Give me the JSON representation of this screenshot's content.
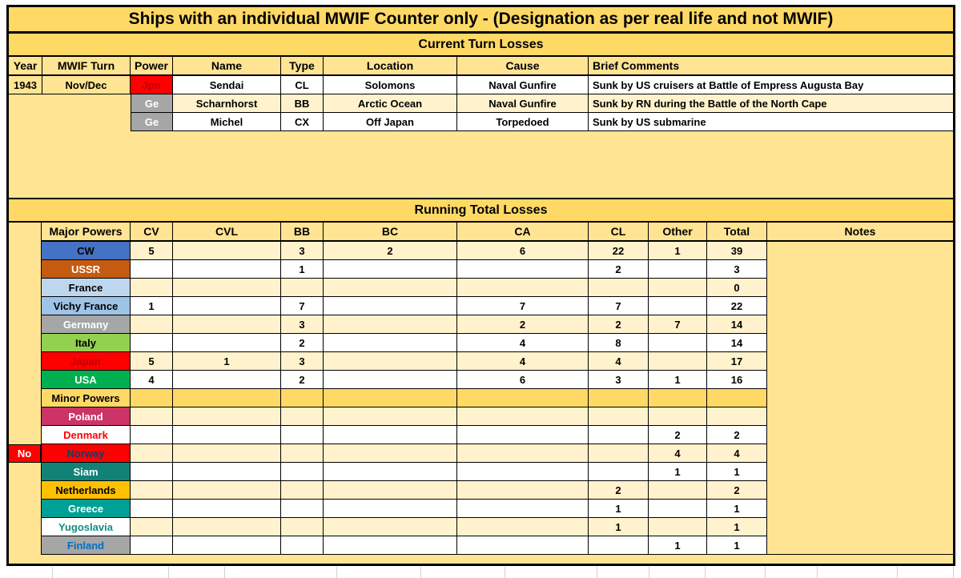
{
  "title": "Ships with an individual MWIF Counter only - (Designation as per real life and not MWIF)",
  "current_turn": {
    "header": "Current Turn Losses",
    "columns": [
      "Year",
      "MWIF Turn",
      "Power",
      "Name",
      "Type",
      "Location",
      "Cause",
      "Brief Comments"
    ],
    "rows": [
      {
        "year": "1943",
        "mwif_turn": "Nov/Dec",
        "power": "Jpn",
        "power_bg": "#FF0000",
        "power_text": "#C00000",
        "name": "Sendai",
        "type": "CL",
        "location": "Solomons",
        "cause": "Naval Gunfire",
        "comments": "Sunk by US cruisers at Battle of Empress Augusta Bay"
      },
      {
        "year": "",
        "mwif_turn": "",
        "power": "Ge",
        "power_bg": "#A6A6A6",
        "power_text": "#FFFFFF",
        "name": "Scharnhorst",
        "type": "BB",
        "location": "Arctic Ocean",
        "cause": "Naval Gunfire",
        "comments": "Sunk by RN during the Battle of the North Cape"
      },
      {
        "year": "",
        "mwif_turn": "",
        "power": "Ge",
        "power_bg": "#A6A6A6",
        "power_text": "#FFFFFF",
        "name": "Michel",
        "type": "CX",
        "location": "Off Japan",
        "cause": "Torpedoed",
        "comments": "Sunk by US submarine"
      }
    ]
  },
  "running_total": {
    "header": "Running Total Losses",
    "columns": [
      "Major Powers",
      "CV",
      "CVL",
      "BB",
      "BC",
      "CA",
      "CL",
      "Other",
      "Total",
      "Notes"
    ],
    "rows": [
      {
        "label": "CW",
        "label_bg": "#4472C4",
        "label_text": "#000000",
        "values": [
          "5",
          "",
          "3",
          "2",
          "6",
          "22",
          "1",
          "39"
        ]
      },
      {
        "label": "USSR",
        "label_bg": "#C55A11",
        "label_text": "#FFFFFF",
        "values": [
          "",
          "",
          "1",
          "",
          "",
          "2",
          "",
          "3"
        ]
      },
      {
        "label": "France",
        "label_bg": "#BDD7EE",
        "label_text": "#000000",
        "values": [
          "",
          "",
          "",
          "",
          "",
          "",
          "",
          "0"
        ]
      },
      {
        "label": "Vichy France",
        "label_bg": "#9DC3E6",
        "label_text": "#000000",
        "values": [
          "1",
          "",
          "7",
          "",
          "7",
          "7",
          "",
          "22"
        ]
      },
      {
        "label": "Germany",
        "label_bg": "#A6A6A6",
        "label_text": "#FFFFFF",
        "values": [
          "",
          "",
          "3",
          "",
          "2",
          "2",
          "7",
          "14"
        ]
      },
      {
        "label": "Italy",
        "label_bg": "#92D050",
        "label_text": "#000000",
        "values": [
          "",
          "",
          "2",
          "",
          "4",
          "8",
          "",
          "14"
        ]
      },
      {
        "label": "Japan",
        "label_bg": "#FF0000",
        "label_text": "#C00000",
        "values": [
          "5",
          "1",
          "3",
          "",
          "4",
          "4",
          "",
          "17"
        ]
      },
      {
        "label": "USA",
        "label_bg": "#00B050",
        "label_text": "#FFFFFF",
        "values": [
          "4",
          "",
          "2",
          "",
          "6",
          "3",
          "1",
          "16"
        ]
      },
      {
        "label": "Minor Powers",
        "label_bg": "#FFD966",
        "label_text": "#000000",
        "divider": true,
        "values": [
          "",
          "",
          "",
          "",
          "",
          "",
          "",
          ""
        ]
      },
      {
        "label": "Poland",
        "label_bg": "#CC3366",
        "label_text": "#FFFFFF",
        "values": [
          "",
          "",
          "",
          "",
          "",
          "",
          "",
          ""
        ]
      },
      {
        "label": "Denmark",
        "label_bg": "#FFFFFF",
        "label_text": "#FF0000",
        "values": [
          "",
          "",
          "",
          "",
          "",
          "",
          "2",
          "2"
        ]
      },
      {
        "label": "Norway",
        "label_bg": "#FF0000",
        "label_text": "#1F3864",
        "margin_label": "No",
        "margin_bg": "#FF0000",
        "margin_text": "#FFFFFF",
        "values": [
          "",
          "",
          "",
          "",
          "",
          "",
          "4",
          "4"
        ]
      },
      {
        "label": "Siam",
        "label_bg": "#128277",
        "label_text": "#FFFFFF",
        "values": [
          "",
          "",
          "",
          "",
          "",
          "",
          "1",
          "1"
        ]
      },
      {
        "label": "Netherlands",
        "label_bg": "#FFC000",
        "label_text": "#000000",
        "values": [
          "",
          "",
          "",
          "",
          "",
          "2",
          "",
          "2"
        ]
      },
      {
        "label": "Greece",
        "label_bg": "#00A095",
        "label_text": "#FFFFFF",
        "values": [
          "",
          "",
          "",
          "",
          "",
          "1",
          "",
          "1"
        ]
      },
      {
        "label": "Yugoslavia",
        "label_bg": "#FFFFFF",
        "label_text": "#138D85",
        "values": [
          "",
          "",
          "",
          "",
          "",
          "1",
          "",
          "1"
        ]
      },
      {
        "label": "Finland",
        "label_bg": "#A6A6A6",
        "label_text": "#0070C0",
        "values": [
          "",
          "",
          "",
          "",
          "",
          "",
          "1",
          "1"
        ]
      }
    ]
  },
  "colors": {
    "band_gold": "#FFD966",
    "page_gold": "#FFE493",
    "stripe_cream": "#FFF2CC",
    "stripe_white": "#FFFFFF",
    "border": "#000000"
  }
}
